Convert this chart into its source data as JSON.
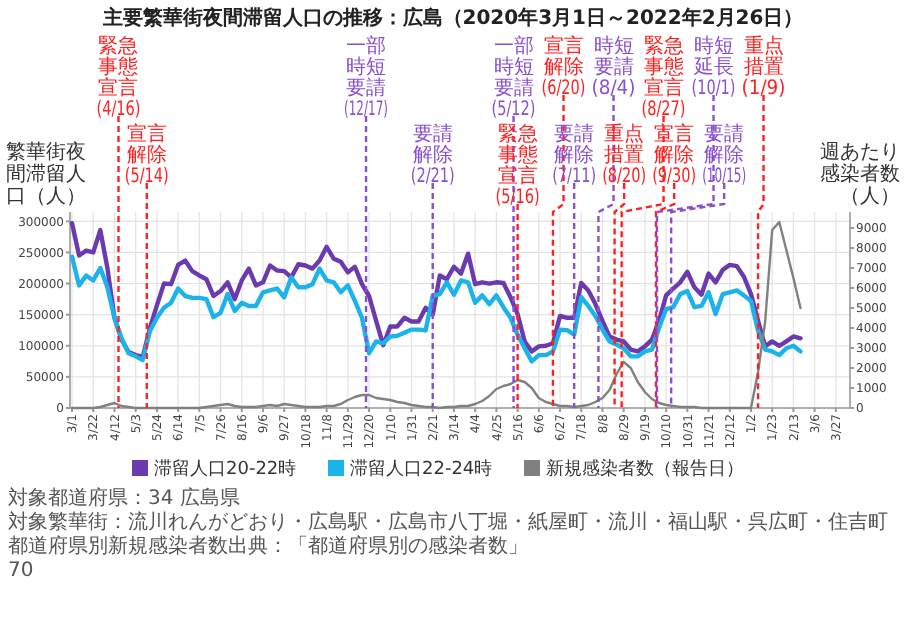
{
  "chart_data": {
    "type": "line",
    "title": "主要繁華街夜間滞留人口の推移：広島（2020年3月1日～2022年2月26日）",
    "ylabel": "繁華街夜間滞留人口（人）",
    "y2label": "週あたり感染者数（人）",
    "x": [
      "2020-03-01",
      "2020-03-08",
      "2020-03-15",
      "2020-03-22",
      "2020-03-29",
      "2020-04-05",
      "2020-04-12",
      "2020-04-19",
      "2020-04-26",
      "2020-05-03",
      "2020-05-10",
      "2020-05-17",
      "2020-05-24",
      "2020-05-31",
      "2020-06-07",
      "2020-06-14",
      "2020-06-21",
      "2020-06-28",
      "2020-07-05",
      "2020-07-12",
      "2020-07-19",
      "2020-07-26",
      "2020-08-02",
      "2020-08-09",
      "2020-08-16",
      "2020-08-23",
      "2020-08-30",
      "2020-09-06",
      "2020-09-13",
      "2020-09-20",
      "2020-09-27",
      "2020-10-04",
      "2020-10-11",
      "2020-10-18",
      "2020-10-25",
      "2020-11-01",
      "2020-11-08",
      "2020-11-15",
      "2020-11-22",
      "2020-11-29",
      "2020-12-06",
      "2020-12-13",
      "2020-12-20",
      "2020-12-27",
      "2021-01-03",
      "2021-01-10",
      "2021-01-17",
      "2021-01-24",
      "2021-01-31",
      "2021-02-07",
      "2021-02-14",
      "2021-02-21",
      "2021-02-28",
      "2021-03-07",
      "2021-03-14",
      "2021-03-21",
      "2021-03-28",
      "2021-04-04",
      "2021-04-11",
      "2021-04-18",
      "2021-04-25",
      "2021-05-02",
      "2021-05-09",
      "2021-05-16",
      "2021-05-23",
      "2021-05-30",
      "2021-06-06",
      "2021-06-13",
      "2021-06-20",
      "2021-06-27",
      "2021-07-04",
      "2021-07-11",
      "2021-07-18",
      "2021-07-25",
      "2021-08-01",
      "2021-08-08",
      "2021-08-15",
      "2021-08-22",
      "2021-08-29",
      "2021-09-05",
      "2021-09-12",
      "2021-09-19",
      "2021-09-26",
      "2021-10-03",
      "2021-10-10",
      "2021-10-17",
      "2021-10-24",
      "2021-10-31",
      "2021-11-07",
      "2021-11-14",
      "2021-11-21",
      "2021-11-28",
      "2021-12-05",
      "2021-12-12",
      "2021-12-19",
      "2021-12-26",
      "2022-01-02",
      "2022-01-09",
      "2022-01-16",
      "2022-01-23",
      "2022-01-30",
      "2022-02-06",
      "2022-02-13",
      "2022-02-20"
    ],
    "series": [
      {
        "name": "滞留人口20-22時",
        "color": "#6a3aae",
        "values": [
          297000,
          245000,
          253000,
          250000,
          286000,
          225000,
          145000,
          110000,
          90000,
          85000,
          82000,
          128000,
          165000,
          200000,
          199000,
          230000,
          237000,
          220000,
          213000,
          207000,
          180000,
          188000,
          202000,
          175000,
          205000,
          224000,
          197000,
          202000,
          229000,
          221000,
          220000,
          210000,
          231000,
          229000,
          224000,
          237000,
          259000,
          240000,
          235000,
          218000,
          227000,
          199000,
          180000,
          140000,
          101000,
          131000,
          131000,
          145000,
          139000,
          139000,
          161000,
          150000,
          213000,
          207000,
          227000,
          216000,
          248000,
          199000,
          202000,
          200000,
          202000,
          201000,
          178000,
          151000,
          107000,
          91000,
          99000,
          100000,
          104000,
          148000,
          145000,
          145000,
          201000,
          189000,
          167000,
          140000,
          115000,
          110000,
          107000,
          94000,
          91000,
          99000,
          110000,
          140000,
          181000,
          192000,
          202000,
          219000,
          194000,
          182000,
          216000,
          202000,
          222000,
          230000,
          228000,
          211000,
          183000,
          140000,
          99000,
          107000,
          100000,
          107000,
          115000,
          112000
        ]
      },
      {
        "name": "滞留人口22-24時",
        "color": "#1cb2ea",
        "values": [
          243000,
          197000,
          213000,
          205000,
          225000,
          194000,
          145000,
          112000,
          88000,
          83000,
          77000,
          123000,
          145000,
          161000,
          169000,
          192000,
          180000,
          177000,
          177000,
          175000,
          146000,
          153000,
          183000,
          156000,
          169000,
          164000,
          164000,
          186000,
          189000,
          192000,
          178000,
          210000,
          194000,
          194000,
          199000,
          224000,
          205000,
          202000,
          186000,
          197000,
          172000,
          145000,
          88000,
          107000,
          104000,
          115000,
          116000,
          121000,
          126000,
          126000,
          125000,
          180000,
          183000,
          202000,
          182000,
          205000,
          202000,
          169000,
          181000,
          167000,
          181000,
          162000,
          145000,
          118000,
          96000,
          75000,
          85000,
          85000,
          91000,
          126000,
          125000,
          118000,
          178000,
          164000,
          148000,
          126000,
          107000,
          102000,
          96000,
          83000,
          83000,
          91000,
          94000,
          129000,
          159000,
          162000,
          183000,
          188000,
          162000,
          164000,
          186000,
          151000,
          183000,
          186000,
          189000,
          181000,
          172000,
          124000,
          94000,
          91000,
          85000,
          96000,
          100000,
          91000
        ]
      },
      {
        "name": "新規感染者数（報告日）",
        "color": "#808080",
        "axis": "y2",
        "values": [
          0,
          0,
          0,
          0,
          50,
          150,
          250,
          100,
          50,
          0,
          0,
          0,
          0,
          0,
          0,
          0,
          0,
          0,
          0,
          50,
          100,
          150,
          200,
          100,
          50,
          50,
          50,
          100,
          150,
          100,
          200,
          150,
          100,
          50,
          50,
          50,
          100,
          100,
          200,
          400,
          550,
          650,
          650,
          500,
          450,
          400,
          300,
          250,
          150,
          100,
          50,
          50,
          0,
          50,
          50,
          100,
          100,
          200,
          350,
          600,
          950,
          1100,
          1200,
          1400,
          1300,
          1000,
          500,
          300,
          200,
          100,
          100,
          50,
          100,
          150,
          300,
          500,
          900,
          1700,
          2300,
          2000,
          1300,
          800,
          450,
          250,
          150,
          100,
          50,
          50,
          50,
          0,
          0,
          0,
          0,
          0,
          0,
          0,
          0,
          1800,
          4300,
          8900,
          9300,
          7900,
          6500,
          5000
        ]
      }
    ],
    "xlim": [
      "2020-02-28",
      "2022-04-10"
    ],
    "xticks": [
      {
        "value": "2020-03-01",
        "label": "3/1"
      },
      {
        "value": "2020-03-22",
        "label": "3/22"
      },
      {
        "value": "2020-04-12",
        "label": "4/12"
      },
      {
        "value": "2020-05-03",
        "label": "5/3"
      },
      {
        "value": "2020-05-24",
        "label": "5/24"
      },
      {
        "value": "2020-06-14",
        "label": "6/14"
      },
      {
        "value": "2020-07-05",
        "label": "7/5"
      },
      {
        "value": "2020-07-26",
        "label": "7/26"
      },
      {
        "value": "2020-08-16",
        "label": "8/16"
      },
      {
        "value": "2020-09-06",
        "label": "9/6"
      },
      {
        "value": "2020-09-27",
        "label": "9/27"
      },
      {
        "value": "2020-10-18",
        "label": "10/18"
      },
      {
        "value": "2020-11-08",
        "label": "11/8"
      },
      {
        "value": "2020-11-29",
        "label": "11/29"
      },
      {
        "value": "2020-12-20",
        "label": "12/20"
      },
      {
        "value": "2021-01-10",
        "label": "1/10"
      },
      {
        "value": "2021-01-31",
        "label": "1/31"
      },
      {
        "value": "2021-02-21",
        "label": "2/21"
      },
      {
        "value": "2021-03-14",
        "label": "3/14"
      },
      {
        "value": "2021-04-04",
        "label": "4/4"
      },
      {
        "value": "2021-04-25",
        "label": "4/25"
      },
      {
        "value": "2021-05-16",
        "label": "5/16"
      },
      {
        "value": "2021-06-06",
        "label": "6/6"
      },
      {
        "value": "2021-06-27",
        "label": "6/27"
      },
      {
        "value": "2021-07-18",
        "label": "7/18"
      },
      {
        "value": "2021-08-08",
        "label": "8/8"
      },
      {
        "value": "2021-08-29",
        "label": "8/29"
      },
      {
        "value": "2021-09-19",
        "label": "9/19"
      },
      {
        "value": "2021-10-10",
        "label": "10/10"
      },
      {
        "value": "2021-10-31",
        "label": "10/31"
      },
      {
        "value": "2021-11-21",
        "label": "11/21"
      },
      {
        "value": "2021-12-12",
        "label": "12/12"
      },
      {
        "value": "2022-01-02",
        "label": "1/2"
      },
      {
        "value": "2022-01-23",
        "label": "1/23"
      },
      {
        "value": "2022-02-13",
        "label": "2/13"
      },
      {
        "value": "2022-03-06",
        "label": "3/6"
      },
      {
        "value": "2022-03-27",
        "label": "3/27"
      }
    ],
    "ylim": [
      0,
      315000
    ],
    "yticks": [
      0,
      50000,
      100000,
      150000,
      200000,
      250000,
      300000
    ],
    "y2lim": [
      0,
      9800
    ],
    "y2ticks": [
      0,
      1000,
      2000,
      3000,
      4000,
      5000,
      6000,
      7000,
      8000,
      9000
    ],
    "ref_lines": [
      {
        "axis": "x",
        "value": "2020-04-16",
        "label": "緊急事態宣言(4/16)",
        "color": "#ff2020",
        "line_style": "dashed"
      },
      {
        "axis": "x",
        "value": "2020-05-14",
        "label": "宣言解除(5/14)",
        "color": "#ff2020",
        "line_style": "dashed"
      },
      {
        "axis": "x",
        "value": "2020-12-17",
        "label": "一部時短要請(12/17)",
        "color": "#8a4fd0",
        "line_style": "dashed"
      },
      {
        "axis": "x",
        "value": "2021-02-21",
        "label": "要請解除(2/21)",
        "color": "#8a4fd0",
        "line_style": "dashed"
      },
      {
        "axis": "x",
        "value": "2021-05-12",
        "label": "一部時短要請(5/12)",
        "color": "#8a4fd0",
        "line_style": "dashed"
      },
      {
        "axis": "x",
        "value": "2021-05-16",
        "label": "緊急事態宣言(5/16)",
        "color": "#ff2020",
        "line_style": "dashed"
      },
      {
        "axis": "x",
        "value": "2021-06-20",
        "label": "宣言解除(6/20)",
        "color": "#ff2020",
        "line_style": "dashed"
      },
      {
        "axis": "x",
        "value": "2021-07-11",
        "label": "要請解除(7/11)",
        "color": "#8a4fd0",
        "line_style": "dashed"
      },
      {
        "axis": "x",
        "value": "2021-08-04",
        "label": "時短要請(8/4)",
        "color": "#8a4fd0",
        "line_style": "dashed"
      },
      {
        "axis": "x",
        "value": "2021-08-20",
        "label": "重点措置(8/20)",
        "color": "#ff2020",
        "line_style": "dashed"
      },
      {
        "axis": "x",
        "value": "2021-08-27",
        "label": "緊急事態宣言(8/27)",
        "color": "#ff2020",
        "line_style": "dashed"
      },
      {
        "axis": "x",
        "value": "2021-09-30",
        "label": "宣言解除(9/30)",
        "color": "#ff2020",
        "line_style": "dashed"
      },
      {
        "axis": "x",
        "value": "2021-10-01",
        "label": "時短延長(10/1)",
        "color": "#8a4fd0",
        "line_style": "dashed"
      },
      {
        "axis": "x",
        "value": "2021-10-15",
        "label": "要請解除(10/15)",
        "color": "#8a4fd0",
        "line_style": "dashed"
      },
      {
        "axis": "x",
        "value": "2022-01-09",
        "label": "重点措置(1/9)",
        "color": "#ff2020",
        "line_style": "dashed"
      }
    ],
    "grid": true,
    "legend": "bottom",
    "annotations": [
      "対象都道府県：34 広島県",
      "対象繁華街：流川れんがどおり・広島駅・広島市八丁堀・紙屋町・流川・福山駅・呉広町・住吉町",
      "都道府県別新規感染者数出典：「都道府県別の感染者数」",
      "70"
    ]
  }
}
